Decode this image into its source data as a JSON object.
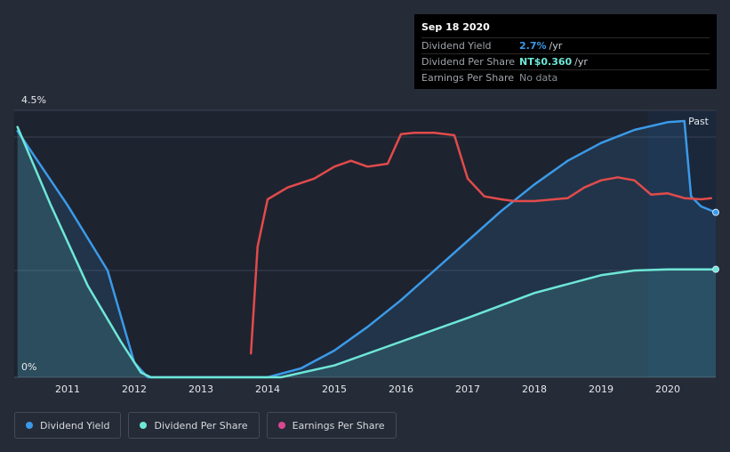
{
  "tooltip": {
    "date": "Sep 18 2020",
    "rows": [
      {
        "label": "Dividend Yield",
        "value": "2.7%",
        "unit": "/yr",
        "color": "#3b9ae8"
      },
      {
        "label": "Dividend Per Share",
        "value": "NT$0.360",
        "unit": "/yr",
        "color": "#6ee7d6"
      },
      {
        "label": "Earnings Per Share",
        "value": "No data",
        "unit": "",
        "color": "#8a8f98"
      }
    ]
  },
  "legend": [
    {
      "label": "Dividend Yield",
      "color": "#3b9ae8"
    },
    {
      "label": "Dividend Per Share",
      "color": "#6ee7d6"
    },
    {
      "label": "Earnings Per Share",
      "color": "#d9488f"
    }
  ],
  "chart_data": {
    "type": "line",
    "y_top_label": "4.5%",
    "y_bottom_label": "0%",
    "ylim": [
      0,
      4.5
    ],
    "xlim": [
      2010.2,
      2020.72
    ],
    "x_ticks": [
      "2011",
      "2012",
      "2013",
      "2014",
      "2015",
      "2016",
      "2017",
      "2018",
      "2019",
      "2020"
    ],
    "past_label": "Past",
    "past_start": 2019.7,
    "grid": true,
    "series": [
      {
        "name": "Dividend Yield",
        "color": "#3b9ae8",
        "fill": true,
        "points": [
          [
            2010.25,
            4.15
          ],
          [
            2011.0,
            2.9
          ],
          [
            2011.6,
            1.8
          ],
          [
            2012.0,
            0.25
          ],
          [
            2012.2,
            0
          ],
          [
            2014.0,
            0
          ],
          [
            2014.5,
            0.15
          ],
          [
            2015.0,
            0.45
          ],
          [
            2015.5,
            0.85
          ],
          [
            2016.0,
            1.3
          ],
          [
            2016.5,
            1.8
          ],
          [
            2017.0,
            2.3
          ],
          [
            2017.5,
            2.8
          ],
          [
            2018.0,
            3.25
          ],
          [
            2018.5,
            3.65
          ],
          [
            2019.0,
            3.95
          ],
          [
            2019.5,
            4.17
          ],
          [
            2020.0,
            4.3
          ],
          [
            2020.25,
            4.32
          ],
          [
            2020.35,
            3.05
          ],
          [
            2020.5,
            2.88
          ],
          [
            2020.72,
            2.78
          ]
        ]
      },
      {
        "name": "Dividend Per Share",
        "color": "#6ee7d6",
        "fill": true,
        "points": [
          [
            2010.25,
            4.22
          ],
          [
            2010.75,
            2.9
          ],
          [
            2011.3,
            1.55
          ],
          [
            2011.8,
            0.6
          ],
          [
            2012.1,
            0.08
          ],
          [
            2012.25,
            0
          ],
          [
            2014.2,
            0
          ],
          [
            2015.0,
            0.2
          ],
          [
            2016.0,
            0.6
          ],
          [
            2017.0,
            1.0
          ],
          [
            2018.0,
            1.42
          ],
          [
            2019.0,
            1.72
          ],
          [
            2019.5,
            1.8
          ],
          [
            2020.0,
            1.82
          ],
          [
            2020.72,
            1.82
          ]
        ]
      },
      {
        "name": "Earnings Per Share",
        "color": "#e24b4b",
        "fill": false,
        "points": [
          [
            2013.75,
            0.4
          ],
          [
            2013.85,
            2.2
          ],
          [
            2014.0,
            3.0
          ],
          [
            2014.3,
            3.2
          ],
          [
            2014.7,
            3.35
          ],
          [
            2015.0,
            3.55
          ],
          [
            2015.25,
            3.65
          ],
          [
            2015.5,
            3.55
          ],
          [
            2015.8,
            3.6
          ],
          [
            2016.0,
            4.1
          ],
          [
            2016.2,
            4.12
          ],
          [
            2016.5,
            4.12
          ],
          [
            2016.8,
            4.08
          ],
          [
            2017.0,
            3.35
          ],
          [
            2017.25,
            3.05
          ],
          [
            2017.5,
            3.0
          ],
          [
            2017.7,
            2.97
          ],
          [
            2018.0,
            2.97
          ],
          [
            2018.5,
            3.02
          ],
          [
            2018.75,
            3.2
          ],
          [
            2019.0,
            3.32
          ],
          [
            2019.25,
            3.37
          ],
          [
            2019.5,
            3.32
          ],
          [
            2019.75,
            3.08
          ],
          [
            2020.0,
            3.1
          ],
          [
            2020.25,
            3.02
          ],
          [
            2020.5,
            3.0
          ],
          [
            2020.65,
            3.02
          ]
        ]
      }
    ]
  }
}
